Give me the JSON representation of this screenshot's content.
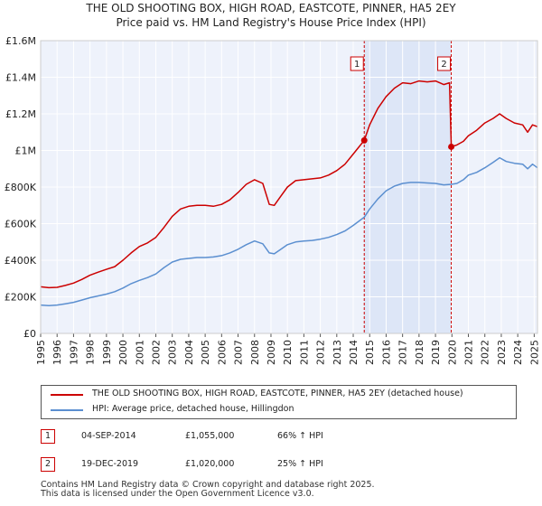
{
  "header": {
    "title_line1": "THE OLD SHOOTING BOX, HIGH ROAD, EASTCOTE, PINNER, HA5 2EY",
    "title_line2": "Price paid vs. HM Land Registry's House Price Index (HPI)"
  },
  "chart_data": {
    "type": "line",
    "ylim": [
      0,
      1600000
    ],
    "xlim": [
      1995,
      2025.2
    ],
    "y_ticks": [
      {
        "value": 0,
        "label": "£0"
      },
      {
        "value": 200000,
        "label": "£200K"
      },
      {
        "value": 400000,
        "label": "£400K"
      },
      {
        "value": 600000,
        "label": "£600K"
      },
      {
        "value": 800000,
        "label": "£800K"
      },
      {
        "value": 1000000,
        "label": "£1M"
      },
      {
        "value": 1200000,
        "label": "£1.2M"
      },
      {
        "value": 1400000,
        "label": "£1.4M"
      },
      {
        "value": 1600000,
        "label": "£1.6M"
      }
    ],
    "x_ticks": [
      "1995",
      "1996",
      "1997",
      "1998",
      "1999",
      "2000",
      "2001",
      "2002",
      "2003",
      "2004",
      "2005",
      "2006",
      "2007",
      "2008",
      "2009",
      "2010",
      "2011",
      "2012",
      "2013",
      "2014",
      "2015",
      "2016",
      "2017",
      "2018",
      "2019",
      "2020",
      "2021",
      "2022",
      "2023",
      "2024",
      "2025"
    ],
    "shaded_range": [
      2014.67,
      2019.96
    ],
    "series": [
      {
        "name": "THE OLD SHOOTING BOX, HIGH ROAD, EASTCOTE, PINNER, HA5 2EY (detached house)",
        "color": "#cc0000",
        "points": [
          [
            1995.0,
            255000
          ],
          [
            1995.5,
            250000
          ],
          [
            1996.0,
            252000
          ],
          [
            1996.5,
            262000
          ],
          [
            1997.0,
            275000
          ],
          [
            1997.5,
            295000
          ],
          [
            1998.0,
            318000
          ],
          [
            1998.5,
            335000
          ],
          [
            1999.0,
            350000
          ],
          [
            1999.5,
            365000
          ],
          [
            2000.0,
            400000
          ],
          [
            2000.5,
            440000
          ],
          [
            2001.0,
            475000
          ],
          [
            2001.5,
            495000
          ],
          [
            2002.0,
            525000
          ],
          [
            2002.5,
            580000
          ],
          [
            2003.0,
            640000
          ],
          [
            2003.5,
            680000
          ],
          [
            2004.0,
            695000
          ],
          [
            2004.5,
            700000
          ],
          [
            2005.0,
            700000
          ],
          [
            2005.5,
            695000
          ],
          [
            2006.0,
            705000
          ],
          [
            2006.5,
            730000
          ],
          [
            2007.0,
            770000
          ],
          [
            2007.5,
            815000
          ],
          [
            2008.0,
            840000
          ],
          [
            2008.5,
            820000
          ],
          [
            2008.9,
            705000
          ],
          [
            2009.2,
            700000
          ],
          [
            2009.6,
            750000
          ],
          [
            2010.0,
            800000
          ],
          [
            2010.5,
            835000
          ],
          [
            2011.0,
            840000
          ],
          [
            2011.5,
            845000
          ],
          [
            2012.0,
            850000
          ],
          [
            2012.5,
            865000
          ],
          [
            2013.0,
            890000
          ],
          [
            2013.5,
            925000
          ],
          [
            2014.0,
            980000
          ],
          [
            2014.67,
            1055000
          ],
          [
            2015.0,
            1140000
          ],
          [
            2015.5,
            1230000
          ],
          [
            2016.0,
            1295000
          ],
          [
            2016.5,
            1340000
          ],
          [
            2017.0,
            1370000
          ],
          [
            2017.5,
            1365000
          ],
          [
            2018.0,
            1380000
          ],
          [
            2018.5,
            1375000
          ],
          [
            2019.0,
            1380000
          ],
          [
            2019.5,
            1360000
          ],
          [
            2019.85,
            1370000
          ],
          [
            2019.96,
            1020000
          ],
          [
            2020.3,
            1030000
          ],
          [
            2020.7,
            1050000
          ],
          [
            2021.0,
            1080000
          ],
          [
            2021.5,
            1110000
          ],
          [
            2022.0,
            1150000
          ],
          [
            2022.5,
            1175000
          ],
          [
            2022.9,
            1200000
          ],
          [
            2023.3,
            1175000
          ],
          [
            2023.8,
            1150000
          ],
          [
            2024.3,
            1140000
          ],
          [
            2024.6,
            1100000
          ],
          [
            2024.9,
            1140000
          ],
          [
            2025.2,
            1130000
          ]
        ]
      },
      {
        "name": "HPI: Average price, detached house, Hillingdon",
        "color": "#5b8fd0",
        "points": [
          [
            1995.0,
            155000
          ],
          [
            1995.5,
            152000
          ],
          [
            1996.0,
            155000
          ],
          [
            1996.5,
            162000
          ],
          [
            1997.0,
            170000
          ],
          [
            1997.5,
            182000
          ],
          [
            1998.0,
            195000
          ],
          [
            1998.5,
            205000
          ],
          [
            1999.0,
            215000
          ],
          [
            1999.5,
            228000
          ],
          [
            2000.0,
            248000
          ],
          [
            2000.5,
            272000
          ],
          [
            2001.0,
            290000
          ],
          [
            2001.5,
            305000
          ],
          [
            2002.0,
            325000
          ],
          [
            2002.5,
            360000
          ],
          [
            2003.0,
            390000
          ],
          [
            2003.5,
            405000
          ],
          [
            2004.0,
            410000
          ],
          [
            2004.5,
            415000
          ],
          [
            2005.0,
            415000
          ],
          [
            2005.5,
            418000
          ],
          [
            2006.0,
            425000
          ],
          [
            2006.5,
            440000
          ],
          [
            2007.0,
            460000
          ],
          [
            2007.5,
            485000
          ],
          [
            2008.0,
            505000
          ],
          [
            2008.5,
            490000
          ],
          [
            2008.9,
            440000
          ],
          [
            2009.2,
            435000
          ],
          [
            2009.6,
            460000
          ],
          [
            2010.0,
            485000
          ],
          [
            2010.5,
            500000
          ],
          [
            2011.0,
            505000
          ],
          [
            2011.5,
            508000
          ],
          [
            2012.0,
            515000
          ],
          [
            2012.5,
            525000
          ],
          [
            2013.0,
            540000
          ],
          [
            2013.5,
            560000
          ],
          [
            2014.0,
            590000
          ],
          [
            2014.67,
            635000
          ],
          [
            2015.0,
            680000
          ],
          [
            2015.5,
            735000
          ],
          [
            2016.0,
            780000
          ],
          [
            2016.5,
            805000
          ],
          [
            2017.0,
            820000
          ],
          [
            2017.5,
            825000
          ],
          [
            2018.0,
            825000
          ],
          [
            2018.5,
            822000
          ],
          [
            2019.0,
            820000
          ],
          [
            2019.5,
            812000
          ],
          [
            2019.96,
            815000
          ],
          [
            2020.3,
            820000
          ],
          [
            2020.7,
            840000
          ],
          [
            2021.0,
            865000
          ],
          [
            2021.5,
            880000
          ],
          [
            2022.0,
            905000
          ],
          [
            2022.5,
            935000
          ],
          [
            2022.9,
            960000
          ],
          [
            2023.3,
            940000
          ],
          [
            2023.8,
            930000
          ],
          [
            2024.3,
            925000
          ],
          [
            2024.6,
            900000
          ],
          [
            2024.9,
            925000
          ],
          [
            2025.2,
            905000
          ]
        ]
      }
    ],
    "markers": [
      {
        "label": "1",
        "x": 2014.67,
        "y": 1055000
      },
      {
        "label": "2",
        "x": 2019.96,
        "y": 1020000
      }
    ]
  },
  "legend": {
    "items": [
      {
        "label": "THE OLD SHOOTING BOX, HIGH ROAD, EASTCOTE, PINNER, HA5 2EY (detached house)",
        "color": "#cc0000"
      },
      {
        "label": "HPI: Average price, detached house, Hillingdon",
        "color": "#5b8fd0"
      }
    ]
  },
  "transactions": [
    {
      "num": "1",
      "date": "04-SEP-2014",
      "price": "£1,055,000",
      "hpi": "66% ↑ HPI"
    },
    {
      "num": "2",
      "date": "19-DEC-2019",
      "price": "£1,020,000",
      "hpi": "25% ↑ HPI"
    }
  ],
  "footer": {
    "line1": "Contains HM Land Registry data © Crown copyright and database right 2025.",
    "line2": "This data is licensed under the Open Government Licence v3.0."
  }
}
